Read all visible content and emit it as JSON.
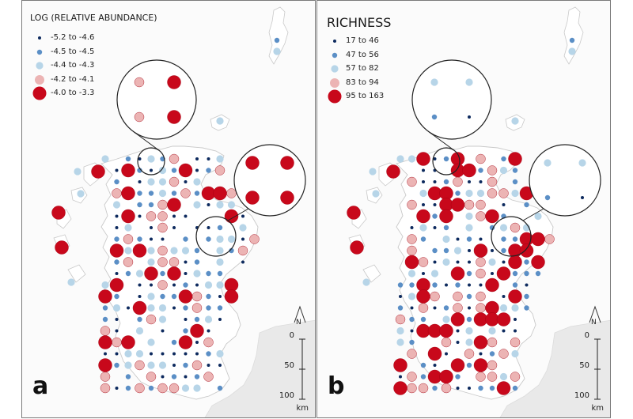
{
  "panels": [
    {
      "id": "a",
      "letter": "a",
      "legend": {
        "title": "LOG (RELATIVE ABUNDANCE)",
        "items": [
          {
            "label": "-5.2 to -4.6",
            "size_class": 1,
            "color": "#0d2a5e"
          },
          {
            "label": "-4.5 to -4.5",
            "size_class": 2,
            "color": "#5b8fc6"
          },
          {
            "label": "-4.4 to -4.3",
            "size_class": 3,
            "color": "#b7d5e8"
          },
          {
            "label": "-4.2 to -4.1",
            "size_class": 4,
            "color": "#ecb4b4"
          },
          {
            "label": "-4.0 to -3.3",
            "size_class": 5,
            "color": "#c8081b"
          }
        ]
      }
    },
    {
      "id": "b",
      "letter": "b",
      "legend": {
        "title": "RICHNESS",
        "items": [
          {
            "label": "17 to 46",
            "size_class": 1,
            "color": "#0d2a5e"
          },
          {
            "label": "47 to 56",
            "size_class": 2,
            "color": "#5b8fc6"
          },
          {
            "label": "57 to 82",
            "size_class": 3,
            "color": "#b7d5e8"
          },
          {
            "label": "83 to 94",
            "size_class": 4,
            "color": "#ecb4b4"
          },
          {
            "label": "95 to 163",
            "size_class": 5,
            "color": "#c8081b"
          }
        ]
      }
    }
  ],
  "scale": {
    "ticks": [
      "0",
      "50",
      "100"
    ],
    "unit": "km"
  },
  "north": "N"
}
